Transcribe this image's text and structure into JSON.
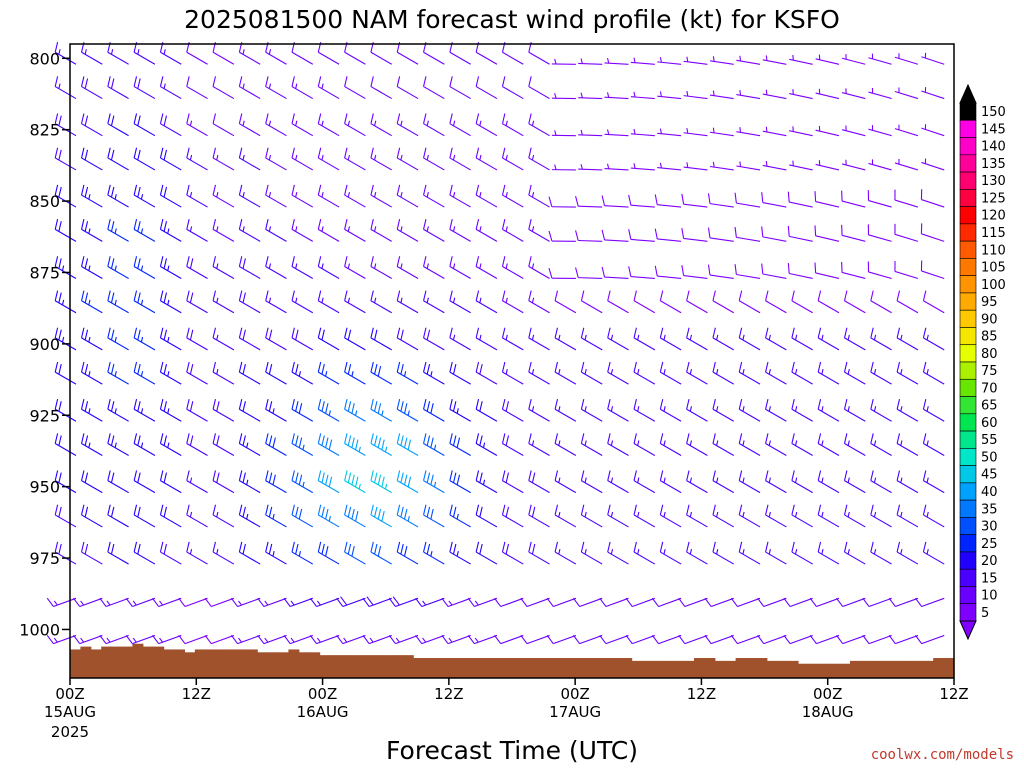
{
  "chart_data": {
    "type": "wind-barb-time-height",
    "title": "2025081500 NAM forecast wind profile (kt) for KSFO",
    "xlabel": "Forecast Time (UTC)",
    "credit": "coolwx.com/models",
    "y_ticks": [
      "800",
      "825",
      "850",
      "875",
      "900",
      "925",
      "950",
      "975",
      "1000"
    ],
    "y_range_hpa": [
      795,
      1017
    ],
    "x_range_hours": [
      0,
      84
    ],
    "x_ticks": [
      {
        "label": "00Z",
        "sub1": "15AUG",
        "sub2": "2025",
        "hour": 0
      },
      {
        "label": "12Z",
        "sub1": "",
        "sub2": "",
        "hour": 12
      },
      {
        "label": "00Z",
        "sub1": "16AUG",
        "sub2": "",
        "hour": 24
      },
      {
        "label": "12Z",
        "sub1": "",
        "sub2": "",
        "hour": 36
      },
      {
        "label": "00Z",
        "sub1": "17AUG",
        "sub2": "",
        "hour": 48
      },
      {
        "label": "12Z",
        "sub1": "",
        "sub2": "",
        "hour": 60
      },
      {
        "label": "00Z",
        "sub1": "18AUG",
        "sub2": "",
        "hour": 72
      },
      {
        "label": "12Z",
        "sub1": "",
        "sub2": "",
        "hour": 84
      }
    ],
    "barb_levels_hpa": [
      800,
      812,
      825,
      837,
      850,
      862,
      875,
      887,
      900,
      912,
      925,
      937,
      950,
      962,
      975,
      987,
      1000
    ],
    "barb_hours": [
      0,
      2.5,
      5,
      7.5,
      10,
      12.5,
      15,
      17.5,
      20,
      22.5,
      25,
      27.5,
      30,
      32.5,
      35,
      37.5,
      40,
      42.5,
      45,
      47.5,
      50,
      52.5,
      55,
      57.5,
      60,
      62.5,
      65,
      67.5,
      70,
      72.5,
      75,
      77.5,
      80,
      82.5
    ],
    "colorbar_levels": [
      "5",
      "10",
      "15",
      "20",
      "25",
      "30",
      "35",
      "40",
      "45",
      "50",
      "55",
      "60",
      "65",
      "70",
      "75",
      "80",
      "85",
      "90",
      "95",
      "100",
      "105",
      "110",
      "115",
      "120",
      "125",
      "130",
      "135",
      "140",
      "145",
      "150"
    ],
    "colorbar_colors": [
      "#7f00ff",
      "#6a00ff",
      "#4b00ff",
      "#2200ff",
      "#0024ff",
      "#0050ff",
      "#0078ff",
      "#00a2ff",
      "#00c8e6",
      "#00e6c8",
      "#00e68c",
      "#00e650",
      "#33e633",
      "#66e600",
      "#aaf000",
      "#e6ff00",
      "#f5e600",
      "#ffc800",
      "#ffaa00",
      "#ff9400",
      "#ff7800",
      "#ff5a00",
      "#ff2a00",
      "#ff0000",
      "#ff0040",
      "#ff0070",
      "#ff0099",
      "#ff00c8",
      "#ff00e6",
      "#000000"
    ],
    "terrain_color": "#a0522d",
    "terrain_top_hpa": [
      1007,
      1006,
      1007,
      1006,
      1006,
      1006,
      1005,
      1006,
      1006,
      1007,
      1007,
      1008,
      1007,
      1007,
      1007,
      1007,
      1007,
      1007,
      1008,
      1008,
      1008,
      1007,
      1008,
      1008,
      1009,
      1009,
      1009,
      1009,
      1009,
      1009,
      1009,
      1009,
      1009,
      1010,
      1010,
      1010,
      1010,
      1010,
      1010,
      1010,
      1010,
      1010,
      1010,
      1010,
      1010,
      1010,
      1010,
      1010,
      1010,
      1010,
      1010,
      1010,
      1010,
      1010,
      1011,
      1011,
      1011,
      1011,
      1011,
      1011,
      1010,
      1010,
      1011,
      1011,
      1010,
      1010,
      1010,
      1011,
      1011,
      1011,
      1012,
      1012,
      1012,
      1012,
      1012,
      1011,
      1011,
      1011,
      1011,
      1011,
      1011,
      1011,
      1011,
      1010,
      1010
    ]
  }
}
